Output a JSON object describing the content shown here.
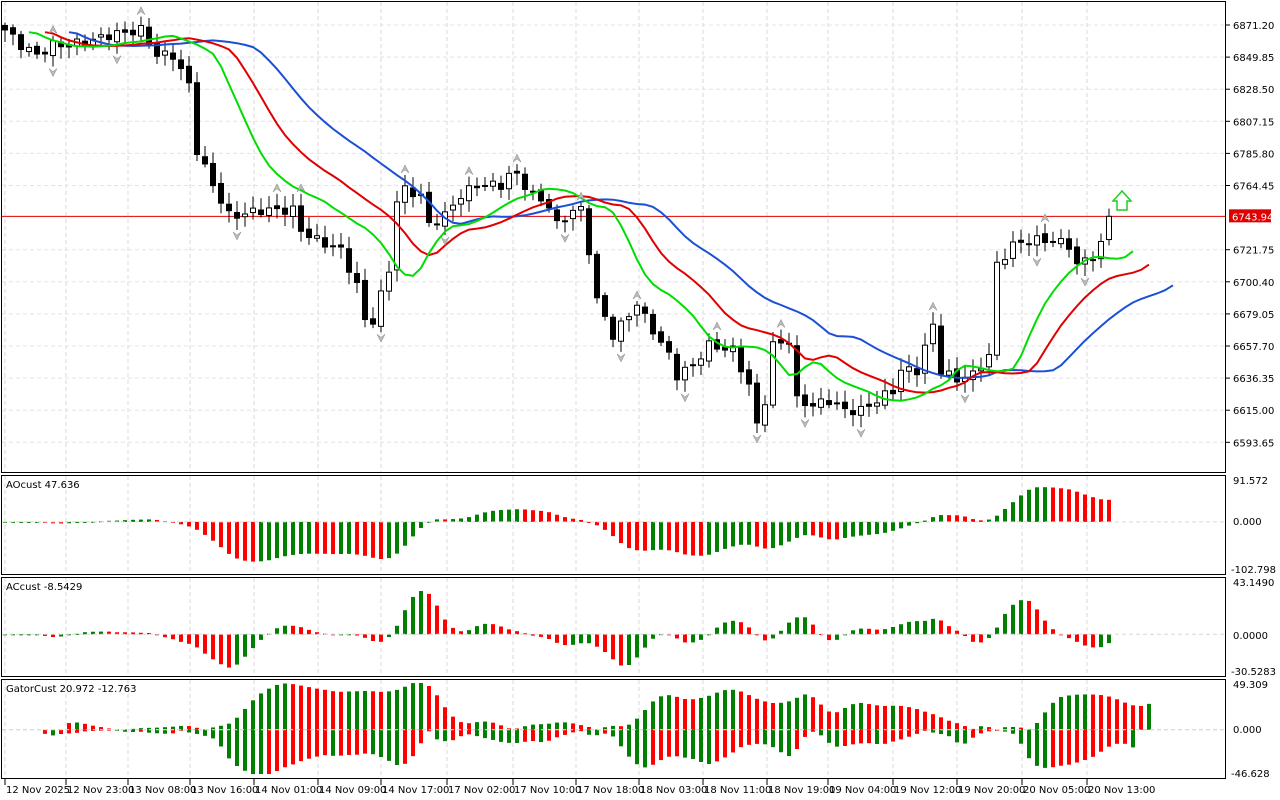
{
  "current_price": {
    "label": "6743.94",
    "value": 6743.94,
    "color": "#e00000"
  },
  "price_axis": [
    "6871.20",
    "6849.85",
    "6828.50",
    "6807.15",
    "6785.80",
    "6764.45",
    "6721.75",
    "6700.40",
    "6679.05",
    "6657.70",
    "6636.35",
    "6615.00",
    "6593.65"
  ],
  "time_axis": [
    "12 Nov 2025",
    "12 Nov 23:00",
    "13 Nov 08:00",
    "13 Nov 16:00",
    "14 Nov 01:00",
    "14 Nov 09:00",
    "14 Nov 17:00",
    "17 Nov 02:00",
    "17 Nov 10:00",
    "17 Nov 18:00",
    "18 Nov 03:00",
    "18 Nov 11:00",
    "18 Nov 19:00",
    "19 Nov 04:00",
    "19 Nov 12:00",
    "19 Nov 20:00",
    "20 Nov 05:00",
    "20 Nov 13:00"
  ],
  "panels": {
    "ao": {
      "label": "AOcust 47.636",
      "max": "91.572",
      "zero": "0.000",
      "min": "-102.798",
      "range": [
        -102.798,
        91.572
      ]
    },
    "ac": {
      "label": "ACcust -8.5429",
      "max": "43.1490",
      "zero": "0.0000",
      "min": "-30.5283",
      "range": [
        -30.5283,
        43.149
      ]
    },
    "gator": {
      "label": "GatorCust 20.972 -12.763",
      "max": "49.309",
      "zero": "0.000",
      "min": "-46.628",
      "range": [
        -46.628,
        49.309
      ]
    }
  },
  "colors": {
    "jaw": "#1a4fd6",
    "teeth": "#e00000",
    "lips": "#00dd00",
    "up": "#007f00",
    "down": "#ff0000",
    "signal_arrow": "#22cc22"
  },
  "chart_data": {
    "type": "candlestick",
    "price_range": [
      6585,
      6880
    ],
    "bars": 139,
    "close_keypoints": [
      [
        0,
        6867.9
      ],
      [
        2,
        6857.9
      ],
      [
        4,
        6851.2
      ],
      [
        6,
        6857.9
      ],
      [
        8,
        6857.9
      ],
      [
        11,
        6861.2
      ],
      [
        13,
        6864.5
      ],
      [
        17,
        6867.9
      ],
      [
        19,
        6851.2
      ],
      [
        21,
        6851.2
      ],
      [
        23,
        6831.3
      ],
      [
        24,
        6788.0
      ],
      [
        26,
        6764.7
      ],
      [
        28,
        6744.7
      ],
      [
        29,
        6744.7
      ],
      [
        32,
        6748.1
      ],
      [
        36,
        6748.1
      ],
      [
        37,
        6734.8
      ],
      [
        39,
        6728.1
      ],
      [
        42,
        6721.4
      ],
      [
        44,
        6698.1
      ],
      [
        45,
        6674.8
      ],
      [
        46,
        6674.8
      ],
      [
        48,
        6708.1
      ],
      [
        49,
        6754.7
      ],
      [
        50,
        6761.4
      ],
      [
        52,
        6758.0
      ],
      [
        53,
        6738.1
      ],
      [
        55,
        6744.7
      ],
      [
        57,
        6758.0
      ],
      [
        59,
        6764.7
      ],
      [
        62,
        6764.7
      ],
      [
        63,
        6771.4
      ],
      [
        64,
        6771.4
      ],
      [
        66,
        6758.0
      ],
      [
        68,
        6751.4
      ],
      [
        69,
        6738.1
      ],
      [
        71,
        6748.1
      ],
      [
        72,
        6748.1
      ],
      [
        73,
        6721.4
      ],
      [
        74,
        6688.2
      ],
      [
        76,
        6664.9
      ],
      [
        78,
        6678.2
      ],
      [
        79,
        6684.8
      ],
      [
        81,
        6668.2
      ],
      [
        83,
        6651.6
      ],
      [
        84,
        6638.2
      ],
      [
        86,
        6644.9
      ],
      [
        88,
        6658.2
      ],
      [
        91,
        6654.9
      ],
      [
        93,
        6631.6
      ],
      [
        94,
        6604.9
      ],
      [
        95,
        6621.6
      ],
      [
        96,
        6658.2
      ],
      [
        98,
        6661.5
      ],
      [
        99,
        6621.6
      ],
      [
        101,
        6618.3
      ],
      [
        103,
        6621.6
      ],
      [
        105,
        6614.9
      ],
      [
        107,
        6614.9
      ],
      [
        109,
        6621.6
      ],
      [
        111,
        6628.2
      ],
      [
        112,
        6641.6
      ],
      [
        114,
        6641.6
      ],
      [
        116,
        6671.5
      ],
      [
        117,
        6641.6
      ],
      [
        119,
        6634.9
      ],
      [
        120,
        6638.2
      ],
      [
        121,
        6638.2
      ],
      [
        123,
        6651.6
      ],
      [
        124,
        6711.5
      ],
      [
        126,
        6724.8
      ],
      [
        128,
        6728.1
      ],
      [
        131,
        6728.1
      ],
      [
        133,
        6724.8
      ],
      [
        134,
        6711.5
      ],
      [
        136,
        6718.1
      ],
      [
        137,
        6724.8
      ],
      [
        138,
        6743.94
      ]
    ],
    "indicators": [
      "Alligator (jaw 13/8, teeth 8/5, lips 5/3)",
      "AOcust",
      "ACcust",
      "GatorCust"
    ]
  }
}
